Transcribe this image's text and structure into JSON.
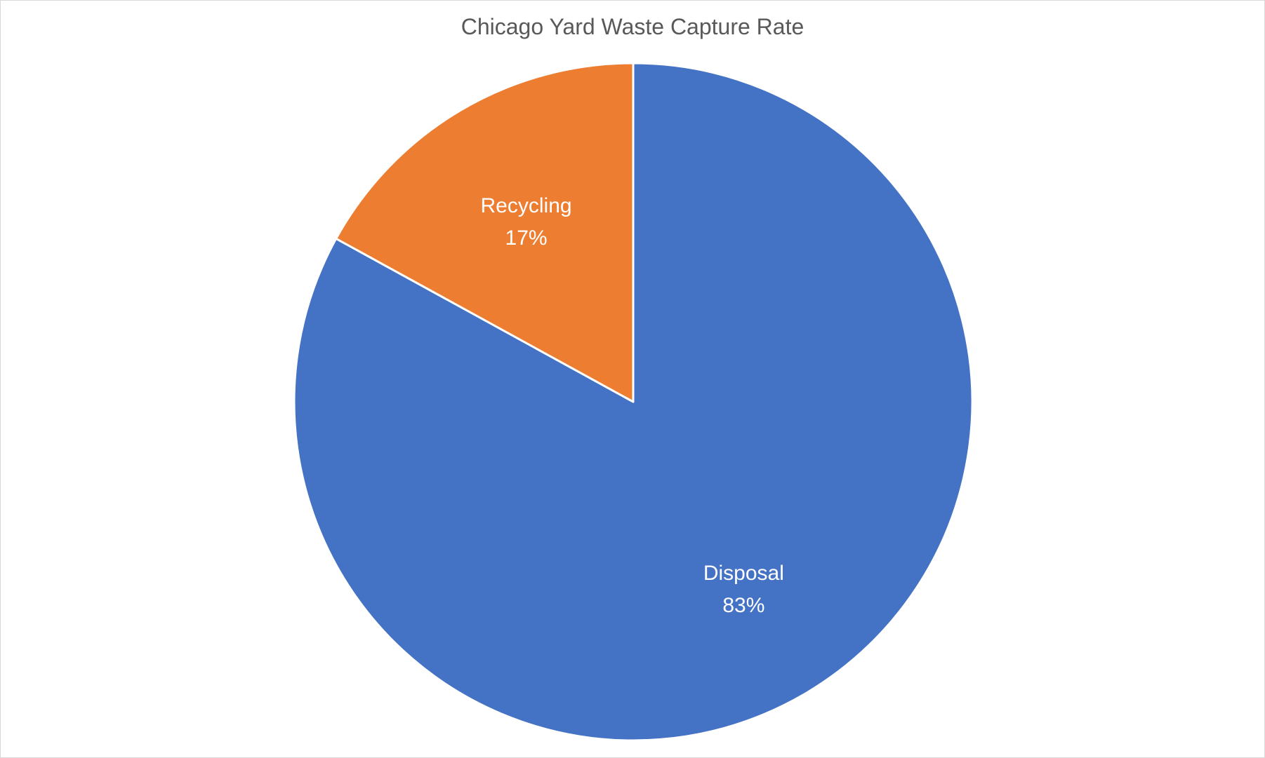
{
  "chart_data": {
    "type": "pie",
    "title": "Chicago Yard Waste Capture Rate",
    "start_angle_deg": 0,
    "direction": "clockwise",
    "slices": [
      {
        "label": "Disposal",
        "value": 83,
        "value_label": "83%",
        "color": "#4472C4"
      },
      {
        "label": "Recycling",
        "value": 17,
        "value_label": "17%",
        "color": "#ED7D31"
      }
    ],
    "legend": "none"
  }
}
